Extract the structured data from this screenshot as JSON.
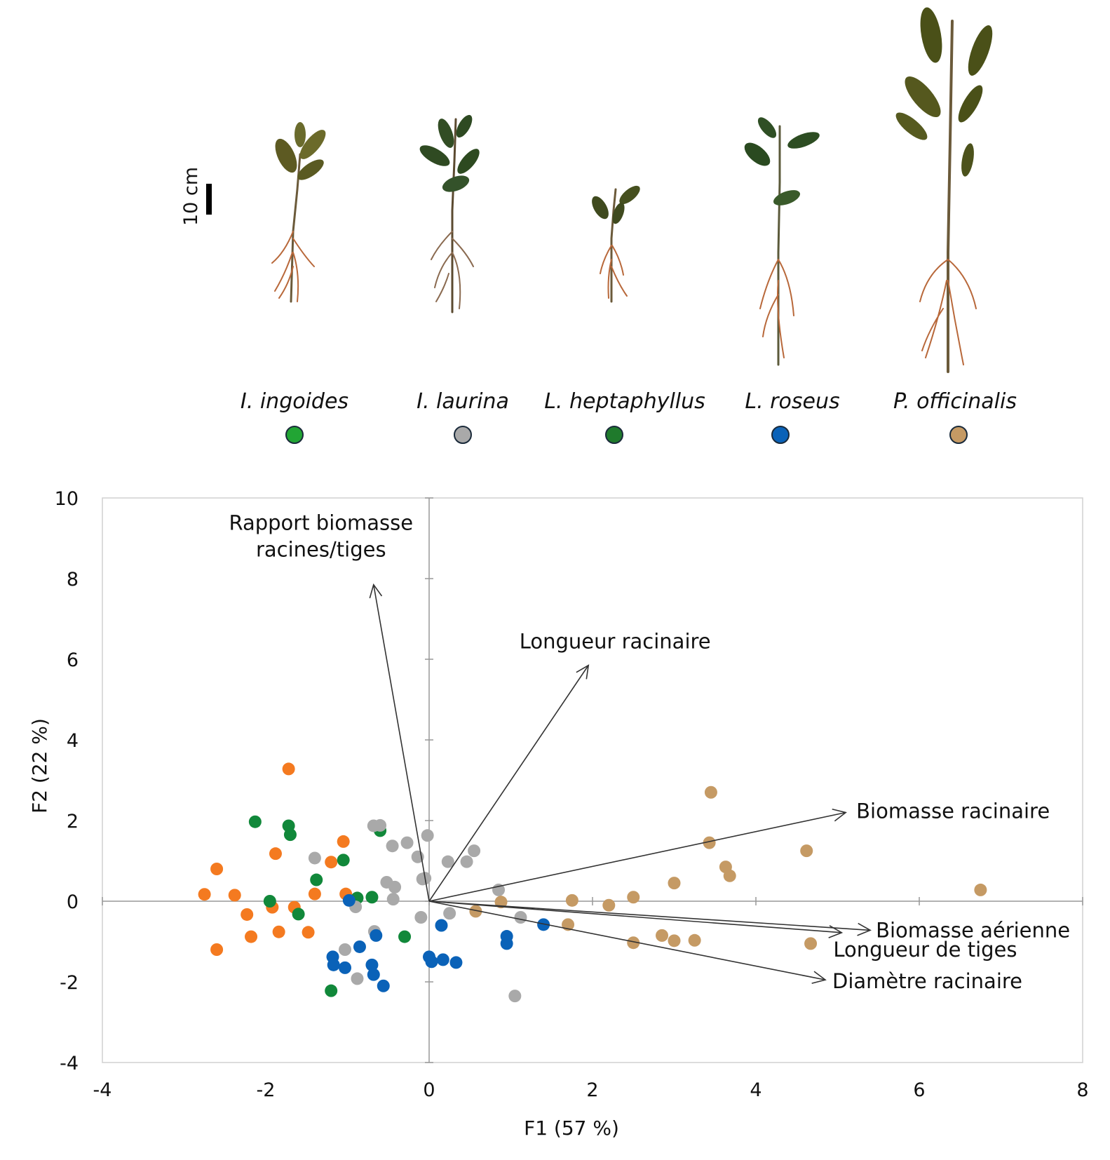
{
  "scale_bar": {
    "label": "10 cm"
  },
  "species_legend": [
    {
      "name": "I. ingoides",
      "color": "#22a534"
    },
    {
      "name": "I. laurina",
      "color": "#a9a9a9"
    },
    {
      "name": "L. heptaphyllus",
      "color": "#1f7a2c"
    },
    {
      "name": "L. roseus",
      "color": "#0a62b8"
    },
    {
      "name": "P. officinalis",
      "color": "#c59a64"
    }
  ],
  "chart_data": {
    "type": "scatter",
    "title": "",
    "xlabel": "F1 (57 %)",
    "ylabel": "F2 (22 %)",
    "xlim": [
      -4,
      8
    ],
    "ylim": [
      -4,
      10
    ],
    "xticks": [
      "-4",
      "-2",
      "0",
      "2",
      "4",
      "6",
      "8"
    ],
    "yticks": [
      "-4",
      "-2",
      "0",
      "2",
      "4",
      "6",
      "8",
      "10"
    ],
    "vectors": [
      {
        "label": "Rapport biomasse racines/tiges",
        "lines": [
          "Rapport biomasse",
          "racines/tiges"
        ],
        "x": -0.68,
        "y": 7.85
      },
      {
        "label": "Longueur racinaire",
        "lines": [
          "Longueur racinaire"
        ],
        "x": 1.95,
        "y": 5.85
      },
      {
        "label": "Biomasse racinaire",
        "lines": [
          "Biomasse racinaire"
        ],
        "x": 5.1,
        "y": 2.2
      },
      {
        "label": "Biomasse aérienne",
        "lines": [
          "Biomasse aérienne"
        ],
        "x": 5.4,
        "y": -0.72
      },
      {
        "label": "Longueur de tiges",
        "lines": [
          "Longueur de tiges"
        ],
        "x": 5.05,
        "y": -0.78
      },
      {
        "label": "Diamètre racinaire",
        "lines": [
          "Diamètre racinaire"
        ],
        "x": 4.85,
        "y": -1.95
      }
    ],
    "series": [
      {
        "name": "orange",
        "color": "#f47a20",
        "points": [
          [
            -1.72,
            3.28
          ],
          [
            -1.05,
            1.48
          ],
          [
            -1.88,
            1.18
          ],
          [
            -1.2,
            0.97
          ],
          [
            -2.6,
            0.8
          ],
          [
            -2.75,
            0.17
          ],
          [
            -2.38,
            0.15
          ],
          [
            -1.4,
            0.18
          ],
          [
            -1.02,
            0.18
          ],
          [
            -2.23,
            -0.33
          ],
          [
            -1.92,
            -0.15
          ],
          [
            -1.65,
            -0.15
          ],
          [
            -2.18,
            -0.88
          ],
          [
            -1.84,
            -0.76
          ],
          [
            -1.48,
            -0.77
          ],
          [
            -2.6,
            -1.2
          ]
        ]
      },
      {
        "name": "green",
        "color": "#11883a",
        "points": [
          [
            -2.13,
            1.97
          ],
          [
            -1.72,
            1.87
          ],
          [
            -1.7,
            1.65
          ],
          [
            -0.6,
            1.75
          ],
          [
            -1.05,
            1.02
          ],
          [
            -1.38,
            0.53
          ],
          [
            -0.88,
            0.08
          ],
          [
            -0.7,
            0.1
          ],
          [
            -1.95,
            0.0
          ],
          [
            -1.6,
            -0.32
          ],
          [
            -0.3,
            -0.88
          ],
          [
            -1.2,
            -2.22
          ]
        ]
      },
      {
        "name": "I. laurina",
        "color": "#a9a9a9",
        "points": [
          [
            -0.68,
            1.87
          ],
          [
            -0.6,
            1.88
          ],
          [
            -0.45,
            1.37
          ],
          [
            -0.27,
            1.45
          ],
          [
            -0.02,
            1.63
          ],
          [
            -0.14,
            1.1
          ],
          [
            0.23,
            0.98
          ],
          [
            0.46,
            0.98
          ],
          [
            0.55,
            1.25
          ],
          [
            -1.4,
            1.07
          ],
          [
            -0.08,
            0.55
          ],
          [
            -0.52,
            0.47
          ],
          [
            -0.42,
            0.35
          ],
          [
            -0.05,
            0.57
          ],
          [
            -0.44,
            0.05
          ],
          [
            -0.9,
            -0.14
          ],
          [
            -0.1,
            -0.4
          ],
          [
            0.25,
            -0.3
          ],
          [
            -0.67,
            -0.75
          ],
          [
            -1.03,
            -1.2
          ],
          [
            -0.88,
            -1.92
          ],
          [
            0.85,
            0.28
          ],
          [
            1.12,
            -0.4
          ],
          [
            1.05,
            -2.35
          ]
        ]
      },
      {
        "name": "L. roseus",
        "color": "#0a62b8",
        "points": [
          [
            -0.98,
            0.02
          ],
          [
            0.15,
            -0.6
          ],
          [
            -0.65,
            -0.85
          ],
          [
            -0.85,
            -1.13
          ],
          [
            -1.18,
            -1.38
          ],
          [
            -1.17,
            -1.58
          ],
          [
            -1.03,
            -1.65
          ],
          [
            -0.7,
            -1.58
          ],
          [
            -0.68,
            -1.82
          ],
          [
            -0.56,
            -2.1
          ],
          [
            0.0,
            -1.38
          ],
          [
            0.03,
            -1.5
          ],
          [
            0.17,
            -1.45
          ],
          [
            0.33,
            -1.52
          ],
          [
            0.95,
            -0.87
          ],
          [
            0.95,
            -1.05
          ],
          [
            1.4,
            -0.58
          ]
        ]
      },
      {
        "name": "P. officinalis",
        "color": "#c59a64",
        "points": [
          [
            3.45,
            2.7
          ],
          [
            3.43,
            1.45
          ],
          [
            4.62,
            1.25
          ],
          [
            3.63,
            0.85
          ],
          [
            3.68,
            0.63
          ],
          [
            3.0,
            0.45
          ],
          [
            2.5,
            0.1
          ],
          [
            1.75,
            0.02
          ],
          [
            0.88,
            -0.02
          ],
          [
            0.57,
            -0.25
          ],
          [
            2.2,
            -0.1
          ],
          [
            1.7,
            -0.58
          ],
          [
            2.85,
            -0.85
          ],
          [
            3.0,
            -0.98
          ],
          [
            3.25,
            -0.97
          ],
          [
            2.5,
            -1.03
          ],
          [
            4.67,
            -1.05
          ],
          [
            6.75,
            0.28
          ]
        ]
      }
    ]
  }
}
